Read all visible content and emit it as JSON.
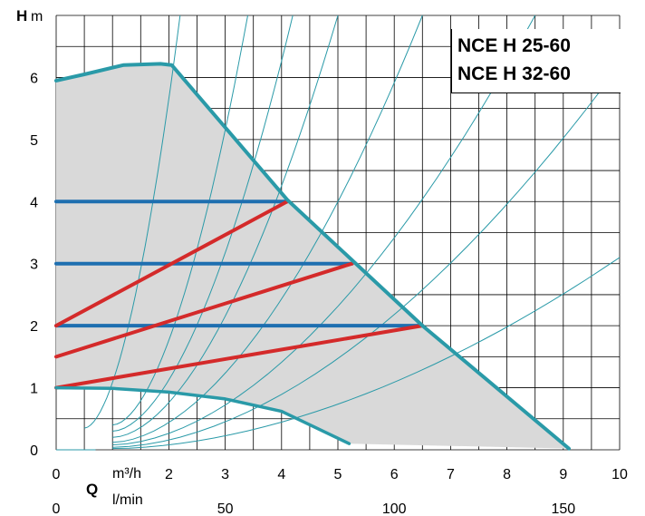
{
  "chart_data": {
    "type": "line",
    "title": [
      "NCE H 25-60",
      "NCE H 32-60"
    ],
    "ylabel": {
      "letter": "H",
      "unit": "m"
    },
    "xlabel": {
      "letter": "Q",
      "unit_primary": "m³/h",
      "unit_secondary": "l/min"
    },
    "xlim": [
      0,
      10
    ],
    "ylim": [
      0,
      7
    ],
    "x_ticks": [
      "0",
      "2",
      "3",
      "4",
      "5",
      "6",
      "7",
      "8",
      "9",
      "10"
    ],
    "x_tick_values": [
      0,
      2,
      3,
      4,
      5,
      6,
      7,
      8,
      9,
      10
    ],
    "secondary_x_ticks": [
      "0",
      "50",
      "100",
      "150"
    ],
    "secondary_x_tick_values": [
      0,
      50,
      100,
      150
    ],
    "y_ticks": [
      "0",
      "1",
      "2",
      "3",
      "4",
      "5",
      "6"
    ],
    "y_tick_values": [
      0,
      1,
      2,
      3,
      4,
      5,
      6
    ],
    "grid": true,
    "colors": {
      "envelope": "#2a9aa8",
      "constant_pressure": "#1e6fb0",
      "proportional_pressure": "#d42a2a",
      "system_curves": "#2a9aa8",
      "operating_area": "#d9d9d9",
      "grid": "#000000"
    },
    "series": [
      {
        "role": "max-curve",
        "points": [
          [
            0,
            5.95
          ],
          [
            0.5,
            6.05
          ],
          [
            1.2,
            6.2
          ],
          [
            1.85,
            6.22
          ],
          [
            2.05,
            6.2
          ],
          [
            4.1,
            4.03
          ],
          [
            6.5,
            2.0
          ],
          [
            9.1,
            0.02
          ]
        ]
      },
      {
        "role": "constant-pressure",
        "points": [
          [
            0,
            4.0
          ],
          [
            4.1,
            4.0
          ]
        ]
      },
      {
        "role": "constant-pressure",
        "points": [
          [
            0,
            3.0
          ],
          [
            5.25,
            3.0
          ]
        ]
      },
      {
        "role": "constant-pressure",
        "points": [
          [
            0,
            2.0
          ],
          [
            6.5,
            2.0
          ]
        ]
      },
      {
        "role": "proportional-pressure",
        "points": [
          [
            0,
            2.0
          ],
          [
            4.1,
            4.0
          ]
        ]
      },
      {
        "role": "proportional-pressure",
        "points": [
          [
            0,
            1.5
          ],
          [
            5.25,
            3.0
          ]
        ]
      },
      {
        "role": "proportional-pressure",
        "points": [
          [
            0,
            1.0
          ],
          [
            6.5,
            2.0
          ]
        ]
      },
      {
        "role": "min-curve",
        "points": [
          [
            0,
            1.0
          ],
          [
            1.0,
            0.99
          ],
          [
            2.0,
            0.93
          ],
          [
            3.0,
            0.82
          ],
          [
            4.0,
            0.62
          ],
          [
            5.2,
            0.1
          ]
        ]
      }
    ],
    "system_curve_ends": [
      {
        "x0": 0.0,
        "y0": 0.0,
        "x1": 0.7,
        "y1": 0.0
      },
      {
        "x0": 0.5,
        "y0": 0.35,
        "x1": 2.2,
        "y1": 7.0
      },
      {
        "x0": 1.0,
        "y0": 0.4,
        "x1": 3.4,
        "y1": 7.0
      },
      {
        "x0": 1.0,
        "y0": 0.3,
        "x1": 4.2,
        "y1": 7.0
      },
      {
        "x0": 1.0,
        "y0": 0.2,
        "x1": 5.0,
        "y1": 7.0
      },
      {
        "x0": 1.0,
        "y0": 0.12,
        "x1": 6.5,
        "y1": 7.0
      },
      {
        "x0": 1.0,
        "y0": 0.08,
        "x1": 8.5,
        "y1": 7.0
      },
      {
        "x0": 1.0,
        "y0": 0.04,
        "x1": 10.0,
        "y1": 6.2
      },
      {
        "x0": 1.0,
        "y0": 0.02,
        "x1": 10.0,
        "y1": 3.1
      }
    ],
    "operating_area": [
      [
        0,
        5.95
      ],
      [
        0.5,
        6.05
      ],
      [
        1.2,
        6.2
      ],
      [
        1.85,
        6.22
      ],
      [
        2.05,
        6.2
      ],
      [
        4.1,
        4.03
      ],
      [
        6.5,
        2.0
      ],
      [
        9.1,
        0.02
      ],
      [
        5.2,
        0.1
      ],
      [
        4.0,
        0.62
      ],
      [
        3.0,
        0.82
      ],
      [
        2.0,
        0.93
      ],
      [
        1.0,
        0.99
      ],
      [
        0,
        1.0
      ]
    ]
  }
}
